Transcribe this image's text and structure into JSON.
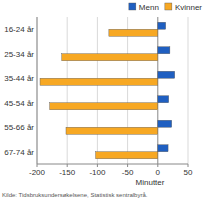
{
  "chart_data": {
    "type": "bar",
    "orientation": "horizontal",
    "categories": [
      "16-24 år",
      "25-34 år",
      "35-44 år",
      "45-54 år",
      "55-66 år",
      "67-74 år"
    ],
    "series": [
      {
        "name": "Menn",
        "color": "#1f5fc1",
        "values": [
          13,
          20,
          28,
          18,
          23,
          17
        ]
      },
      {
        "name": "Kvinner",
        "color": "#f7a823",
        "values": [
          -81,
          -159,
          -195,
          -179,
          -152,
          -103
        ]
      }
    ],
    "xlim": [
      -200,
      50
    ],
    "xticks": [
      -200,
      -150,
      -100,
      -50,
      0,
      50
    ],
    "x_label": "Minutter",
    "source": "Kilde: Tidsbruksundersøkelsene, Statistisk sentralbyrå.",
    "grid": true,
    "legend": "top-right"
  }
}
